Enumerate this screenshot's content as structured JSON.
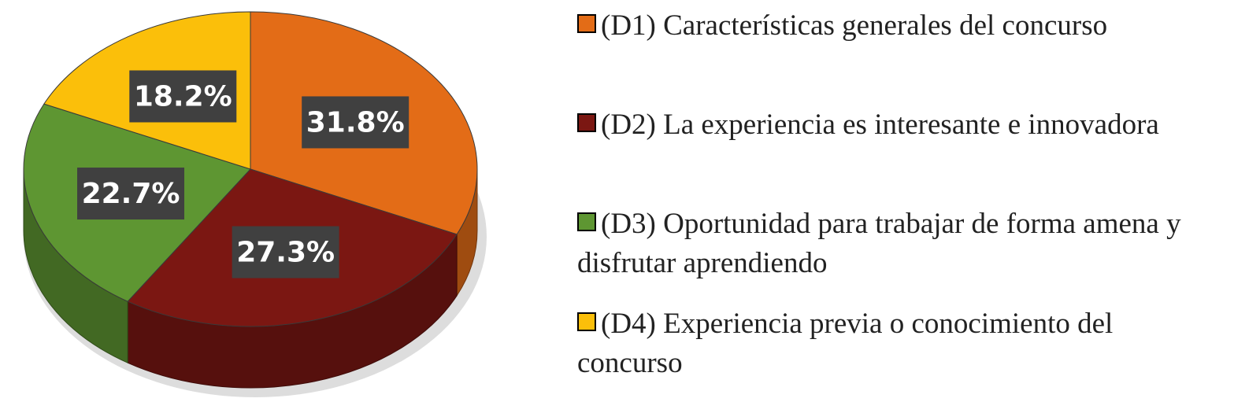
{
  "chart_data": {
    "type": "pie",
    "categories": [
      "(D1) Características generales del concurso",
      "(D2) La experiencia es interesante e innovadora",
      "(D3) Oportunidad para trabajar de forma amena y disfrutar aprendiendo",
      "(D4) Experiencia previa o conocimiento del concurso"
    ],
    "values": [
      31.8,
      27.3,
      22.7,
      18.2
    ],
    "value_labels": [
      "31.8%",
      "27.3%",
      "22.7%",
      "18.2%"
    ],
    "colors": [
      "#e36c17",
      "#7b1712",
      "#5e9632",
      "#fbbf0a"
    ]
  }
}
